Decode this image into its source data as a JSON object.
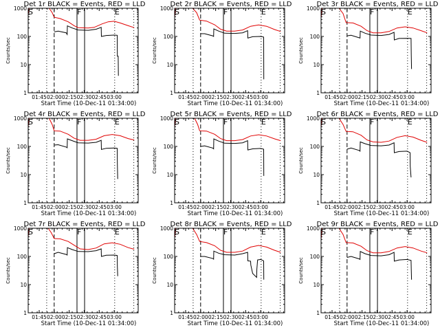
{
  "chart_data": {
    "type": "line",
    "layout": "3x3 grid of small-multiple log-scale time-series plots",
    "time_unit": "minutes after 01:34",
    "x_range": [
      0,
      110
    ],
    "ylim": [
      1,
      1000
    ],
    "yscale": "log",
    "xticks": [
      {
        "t": 11,
        "label": "01:45"
      },
      {
        "t": 26,
        "label": "02:00"
      },
      {
        "t": 41,
        "label": "02:15"
      },
      {
        "t": 56,
        "label": "02:30"
      },
      {
        "t": 71,
        "label": "02:45"
      },
      {
        "t": 86,
        "label": "03:00"
      }
    ],
    "yticks": [
      {
        "v": 1,
        "label": "1"
      },
      {
        "v": 10,
        "label": "10"
      },
      {
        "v": 100,
        "label": "100"
      },
      {
        "v": 1000,
        "label": "1000"
      }
    ],
    "xlabel": "Start Time (10-Dec-11 01:34:00)",
    "ylabel": "Counts/sec",
    "legend": "in title: BLACK = Events, RED = LLD",
    "markers": {
      "dotted": [
        18.5,
        86.5,
        105.6
      ],
      "dashed": [
        26
      ],
      "solid": [
        48.8,
        56.4
      ],
      "labels": [
        {
          "t": 0,
          "text": "S"
        },
        {
          "t": 48.8,
          "text": "F"
        },
        {
          "t": 86.5,
          "text": "E"
        }
      ]
    },
    "panels": [
      {
        "title": "Det 1r BLACK = Events, RED = LLD",
        "red": [
          [
            0,
            600
          ],
          [
            1,
            1100
          ],
          [
            21,
            1100
          ],
          [
            24,
            700
          ],
          [
            26,
            480
          ],
          [
            32,
            430
          ],
          [
            40,
            330
          ],
          [
            46,
            240
          ],
          [
            50,
            205
          ],
          [
            60,
            200
          ],
          [
            66,
            210
          ],
          [
            74,
            280
          ],
          [
            80,
            330
          ],
          [
            86,
            345
          ],
          [
            92,
            300
          ],
          [
            100,
            240
          ],
          [
            106,
            205
          ]
        ],
        "black": [
          [
            26,
            145
          ],
          [
            30,
            155
          ],
          [
            38,
            135
          ],
          [
            39,
            118
          ],
          [
            39.2,
            237
          ],
          [
            44,
            200
          ],
          [
            50,
            170
          ],
          [
            60,
            165
          ],
          [
            68,
            180
          ],
          [
            73,
            210
          ],
          [
            73.2,
            100
          ],
          [
            78,
            108
          ],
          [
            86,
            112
          ],
          [
            89,
            110
          ],
          [
            89.2,
            20
          ],
          [
            90,
            20
          ],
          [
            90.2,
            4
          ]
        ]
      },
      {
        "title": "Det 2r BLACK = Events, RED = LLD",
        "red": [
          [
            0,
            500
          ],
          [
            1,
            1100
          ],
          [
            18,
            1100
          ],
          [
            22,
            700
          ],
          [
            25,
            380
          ],
          [
            32,
            350
          ],
          [
            40,
            260
          ],
          [
            46,
            180
          ],
          [
            52,
            155
          ],
          [
            60,
            155
          ],
          [
            68,
            170
          ],
          [
            76,
            230
          ],
          [
            84,
            255
          ],
          [
            92,
            230
          ],
          [
            100,
            175
          ],
          [
            106,
            150
          ]
        ],
        "black": [
          [
            26,
            125
          ],
          [
            30,
            125
          ],
          [
            38,
            105
          ],
          [
            39,
            100
          ],
          [
            39.2,
            185
          ],
          [
            44,
            155
          ],
          [
            50,
            130
          ],
          [
            60,
            128
          ],
          [
            68,
            135
          ],
          [
            73,
            160
          ],
          [
            73.2,
            88
          ],
          [
            78,
            98
          ],
          [
            86,
            100
          ],
          [
            89,
            95
          ],
          [
            89.2,
            3
          ]
        ]
      },
      {
        "title": "Det 3r BLACK = Events, RED = LLD",
        "red": [
          [
            0,
            450
          ],
          [
            1,
            1100
          ],
          [
            18,
            1100
          ],
          [
            22,
            650
          ],
          [
            25,
            310
          ],
          [
            32,
            300
          ],
          [
            40,
            230
          ],
          [
            46,
            160
          ],
          [
            52,
            135
          ],
          [
            60,
            135
          ],
          [
            68,
            150
          ],
          [
            76,
            200
          ],
          [
            84,
            220
          ],
          [
            92,
            200
          ],
          [
            100,
            160
          ],
          [
            106,
            135
          ]
        ],
        "black": [
          [
            26,
            105
          ],
          [
            30,
            110
          ],
          [
            38,
            90
          ],
          [
            39,
            88
          ],
          [
            39.2,
            155
          ],
          [
            44,
            130
          ],
          [
            50,
            112
          ],
          [
            60,
            108
          ],
          [
            68,
            118
          ],
          [
            73,
            140
          ],
          [
            73.2,
            75
          ],
          [
            78,
            85
          ],
          [
            86,
            86
          ],
          [
            90,
            85
          ],
          [
            90.2,
            22
          ],
          [
            90.5,
            7
          ]
        ]
      },
      {
        "title": "Det 4r BLACK = Events, RED = LLD",
        "red": [
          [
            0,
            500
          ],
          [
            1,
            1100
          ],
          [
            21,
            1100
          ],
          [
            24,
            600
          ],
          [
            26,
            360
          ],
          [
            32,
            350
          ],
          [
            40,
            270
          ],
          [
            46,
            195
          ],
          [
            52,
            165
          ],
          [
            60,
            165
          ],
          [
            68,
            180
          ],
          [
            76,
            240
          ],
          [
            84,
            265
          ],
          [
            92,
            240
          ],
          [
            100,
            190
          ],
          [
            106,
            170
          ]
        ],
        "black": [
          [
            26,
            112
          ],
          [
            30,
            115
          ],
          [
            38,
            95
          ],
          [
            39,
            90
          ],
          [
            39.2,
            185
          ],
          [
            44,
            160
          ],
          [
            50,
            135
          ],
          [
            60,
            132
          ],
          [
            68,
            140
          ],
          [
            73,
            165
          ],
          [
            73.2,
            78
          ],
          [
            78,
            86
          ],
          [
            86,
            88
          ],
          [
            89,
            86
          ],
          [
            89.2,
            25
          ],
          [
            89.5,
            7
          ]
        ]
      },
      {
        "title": "Det 5r BLACK = Events, RED = LLD",
        "red": [
          [
            0,
            500
          ],
          [
            1,
            1100
          ],
          [
            20,
            1100
          ],
          [
            23,
            600
          ],
          [
            25,
            360
          ],
          [
            32,
            350
          ],
          [
            40,
            270
          ],
          [
            46,
            190
          ],
          [
            52,
            160
          ],
          [
            60,
            160
          ],
          [
            68,
            175
          ],
          [
            76,
            235
          ],
          [
            84,
            260
          ],
          [
            92,
            235
          ],
          [
            100,
            185
          ],
          [
            106,
            160
          ]
        ],
        "black": [
          [
            26,
            100
          ],
          [
            30,
            105
          ],
          [
            38,
            88
          ],
          [
            39,
            82
          ],
          [
            39.2,
            185
          ],
          [
            44,
            155
          ],
          [
            50,
            130
          ],
          [
            60,
            128
          ],
          [
            68,
            135
          ],
          [
            73,
            160
          ],
          [
            73.2,
            75
          ],
          [
            78,
            82
          ],
          [
            86,
            85
          ],
          [
            89,
            80
          ],
          [
            89.2,
            9
          ]
        ]
      },
      {
        "title": "Det 6r BLACK = Events, RED = LLD",
        "red": [
          [
            0,
            500
          ],
          [
            1,
            1100
          ],
          [
            18,
            1100
          ],
          [
            22,
            600
          ],
          [
            25,
            340
          ],
          [
            32,
            330
          ],
          [
            40,
            250
          ],
          [
            46,
            170
          ],
          [
            52,
            145
          ],
          [
            60,
            140
          ],
          [
            68,
            155
          ],
          [
            76,
            210
          ],
          [
            84,
            240
          ],
          [
            92,
            215
          ],
          [
            100,
            165
          ],
          [
            106,
            140
          ]
        ],
        "black": [
          [
            26,
            80
          ],
          [
            30,
            88
          ],
          [
            38,
            72
          ],
          [
            39,
            68
          ],
          [
            39.2,
            145
          ],
          [
            44,
            125
          ],
          [
            50,
            108
          ],
          [
            60,
            105
          ],
          [
            68,
            112
          ],
          [
            73,
            135
          ],
          [
            73.2,
            60
          ],
          [
            78,
            66
          ],
          [
            86,
            68
          ],
          [
            89,
            60
          ],
          [
            89.2,
            20
          ],
          [
            90,
            8
          ]
        ]
      },
      {
        "title": "Det 7r BLACK = Events, RED = LLD",
        "red": [
          [
            0,
            500
          ],
          [
            1,
            1100
          ],
          [
            20,
            1100
          ],
          [
            23,
            700
          ],
          [
            26,
            430
          ],
          [
            32,
            420
          ],
          [
            40,
            340
          ],
          [
            46,
            250
          ],
          [
            52,
            185
          ],
          [
            60,
            175
          ],
          [
            68,
            200
          ],
          [
            76,
            280
          ],
          [
            84,
            305
          ],
          [
            92,
            270
          ],
          [
            100,
            205
          ],
          [
            106,
            180
          ]
        ],
        "black": [
          [
            26,
            125
          ],
          [
            30,
            140
          ],
          [
            38,
            118
          ],
          [
            39,
            112
          ],
          [
            39.2,
            205
          ],
          [
            44,
            175
          ],
          [
            50,
            150
          ],
          [
            60,
            148
          ],
          [
            68,
            160
          ],
          [
            73,
            185
          ],
          [
            73.2,
            100
          ],
          [
            78,
            110
          ],
          [
            86,
            112
          ],
          [
            89,
            108
          ],
          [
            89.2,
            45
          ],
          [
            89.5,
            20
          ]
        ]
      },
      {
        "title": "Det 8r BLACK = Events, RED = LLD",
        "red": [
          [
            0,
            450
          ],
          [
            1,
            1100
          ],
          [
            18,
            1100
          ],
          [
            22,
            600
          ],
          [
            25,
            340
          ],
          [
            32,
            310
          ],
          [
            40,
            240
          ],
          [
            46,
            165
          ],
          [
            52,
            140
          ],
          [
            60,
            140
          ],
          [
            68,
            155
          ],
          [
            76,
            215
          ],
          [
            84,
            245
          ],
          [
            92,
            215
          ],
          [
            100,
            165
          ],
          [
            106,
            140
          ]
        ],
        "black": [
          [
            26,
            100
          ],
          [
            30,
            100
          ],
          [
            38,
            85
          ],
          [
            39,
            80
          ],
          [
            39.2,
            155
          ],
          [
            44,
            130
          ],
          [
            50,
            115
          ],
          [
            60,
            112
          ],
          [
            68,
            125
          ],
          [
            73,
            140
          ],
          [
            73.2,
            70
          ],
          [
            76,
            68
          ],
          [
            76.2,
            50
          ],
          [
            78,
            25
          ],
          [
            82,
            18
          ],
          [
            82.2,
            35
          ],
          [
            83,
            75
          ],
          [
            86,
            78
          ],
          [
            89,
            70
          ],
          [
            89.2,
            15
          ]
        ]
      },
      {
        "title": "Det 9r BLACK = Events, RED = LLD",
        "red": [
          [
            0,
            400
          ],
          [
            1,
            1100
          ],
          [
            18,
            1100
          ],
          [
            22,
            600
          ],
          [
            25,
            310
          ],
          [
            32,
            300
          ],
          [
            40,
            230
          ],
          [
            46,
            160
          ],
          [
            52,
            135
          ],
          [
            60,
            135
          ],
          [
            68,
            150
          ],
          [
            76,
            200
          ],
          [
            84,
            225
          ],
          [
            92,
            200
          ],
          [
            100,
            155
          ],
          [
            106,
            135
          ]
        ],
        "black": [
          [
            26,
            92
          ],
          [
            30,
            100
          ],
          [
            38,
            82
          ],
          [
            39,
            78
          ],
          [
            39.2,
            150
          ],
          [
            44,
            125
          ],
          [
            50,
            108
          ],
          [
            60,
            105
          ],
          [
            68,
            115
          ],
          [
            73,
            140
          ],
          [
            73.2,
            68
          ],
          [
            78,
            75
          ],
          [
            86,
            78
          ],
          [
            90,
            72
          ],
          [
            90.2,
            35
          ],
          [
            90.5,
            15
          ]
        ]
      }
    ]
  },
  "colors": {
    "events": "#000000",
    "lld": "#e00000"
  }
}
